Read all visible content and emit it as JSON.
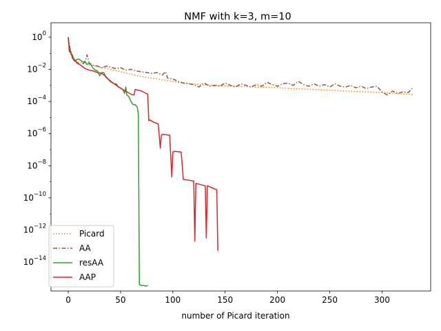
{
  "chart_data": {
    "type": "line",
    "title": "NMF with k=3, m=10",
    "xlabel": "number of Picard iteration",
    "ylabel": "",
    "yscale": "log",
    "xlim": [
      -16.5,
      346.5
    ],
    "ylim_exp": [
      -15.8,
      0.9
    ],
    "xticks": [
      0,
      50,
      100,
      150,
      200,
      250,
      300
    ],
    "xtick_labels": [
      "0",
      "50",
      "100",
      "150",
      "200",
      "250",
      "300"
    ],
    "yticks_exp": [
      0,
      -2,
      -4,
      -6,
      -8,
      -10,
      -12,
      -14
    ],
    "ytick_labels": [
      {
        "base": "10",
        "exp": "0"
      },
      {
        "base": "10",
        "exp": "−2"
      },
      {
        "base": "10",
        "exp": "−4"
      },
      {
        "base": "10",
        "exp": "−6"
      },
      {
        "base": "10",
        "exp": "−8"
      },
      {
        "base": "10",
        "exp": "−10"
      },
      {
        "base": "10",
        "exp": "−12"
      },
      {
        "base": "10",
        "exp": "−14"
      }
    ],
    "grid": false,
    "legend": {
      "position": "lower-left"
    },
    "series": [
      {
        "name": "Picard",
        "color": "#ff7f0e",
        "dash": "dotted",
        "points_log10": [
          [
            0,
            0
          ],
          [
            2,
            -0.9
          ],
          [
            5,
            -1.3
          ],
          [
            10,
            -1.55
          ],
          [
            20,
            -1.72
          ],
          [
            35,
            -1.92
          ],
          [
            50,
            -2.15
          ],
          [
            70,
            -2.45
          ],
          [
            90,
            -2.65
          ],
          [
            110,
            -2.85
          ],
          [
            130,
            -2.97
          ],
          [
            160,
            -3.05
          ],
          [
            200,
            -3.15
          ],
          [
            250,
            -3.3
          ],
          [
            300,
            -3.45
          ],
          [
            330,
            -3.57
          ]
        ]
      },
      {
        "name": "AA",
        "color": "#8c564b",
        "dash": "dashdot",
        "points_log10": [
          [
            0,
            0
          ],
          [
            2,
            -0.8
          ],
          [
            5,
            -1.3
          ],
          [
            8,
            -1.6
          ],
          [
            12,
            -1.75
          ],
          [
            16,
            -1.55
          ],
          [
            18,
            -1.1
          ],
          [
            20,
            -1.6
          ],
          [
            24,
            -1.75
          ],
          [
            28,
            -1.8
          ],
          [
            32,
            -1.9
          ],
          [
            36,
            -1.8
          ],
          [
            40,
            -1.85
          ],
          [
            45,
            -1.95
          ],
          [
            50,
            -1.9
          ],
          [
            55,
            -2.05
          ],
          [
            60,
            -2.0
          ],
          [
            65,
            -2.1
          ],
          [
            70,
            -2.15
          ],
          [
            75,
            -2.2
          ],
          [
            80,
            -2.25
          ],
          [
            85,
            -2.2
          ],
          [
            90,
            -2.35
          ],
          [
            93,
            -2.15
          ],
          [
            95,
            -2.55
          ],
          [
            100,
            -2.6
          ],
          [
            105,
            -2.75
          ],
          [
            110,
            -2.85
          ],
          [
            115,
            -2.9
          ],
          [
            120,
            -2.95
          ],
          [
            125,
            -3.1
          ],
          [
            130,
            -2.85
          ],
          [
            135,
            -3.05
          ],
          [
            140,
            -3.0
          ],
          [
            145,
            -3.05
          ],
          [
            150,
            -2.85
          ],
          [
            155,
            -3.0
          ],
          [
            160,
            -3.1
          ],
          [
            165,
            -2.9
          ],
          [
            170,
            -3.0
          ],
          [
            175,
            -3.1
          ],
          [
            180,
            -2.95
          ],
          [
            185,
            -3.05
          ],
          [
            190,
            -2.8
          ],
          [
            195,
            -2.95
          ],
          [
            200,
            -3.05
          ],
          [
            205,
            -2.9
          ],
          [
            210,
            -2.85
          ],
          [
            215,
            -3.0
          ],
          [
            220,
            -2.75
          ],
          [
            225,
            -2.95
          ],
          [
            230,
            -3.05
          ],
          [
            235,
            -2.9
          ],
          [
            240,
            -3.05
          ],
          [
            245,
            -2.95
          ],
          [
            250,
            -3.1
          ],
          [
            255,
            -2.9
          ],
          [
            260,
            -3.05
          ],
          [
            265,
            -3.1
          ],
          [
            270,
            -3.0
          ],
          [
            275,
            -3.15
          ],
          [
            280,
            -3.05
          ],
          [
            285,
            -3.2
          ],
          [
            290,
            -3.1
          ],
          [
            295,
            -3.05
          ],
          [
            300,
            -3.4
          ],
          [
            305,
            -3.6
          ],
          [
            310,
            -3.35
          ],
          [
            315,
            -3.5
          ],
          [
            320,
            -3.4
          ],
          [
            325,
            -3.45
          ],
          [
            330,
            -3.1
          ]
        ]
      },
      {
        "name": "resAA",
        "color": "#2ca02c",
        "dash": "solid",
        "points_log10": [
          [
            0,
            0
          ],
          [
            1,
            -0.9
          ],
          [
            2,
            -0.8
          ],
          [
            4,
            -1.3
          ],
          [
            6,
            -1.5
          ],
          [
            8,
            -1.4
          ],
          [
            10,
            -1.35
          ],
          [
            12,
            -1.45
          ],
          [
            14,
            -1.55
          ],
          [
            16,
            -1.5
          ],
          [
            18,
            -1.7
          ],
          [
            20,
            -1.6
          ],
          [
            22,
            -1.75
          ],
          [
            24,
            -1.95
          ],
          [
            26,
            -2.05
          ],
          [
            28,
            -2.1
          ],
          [
            30,
            -2.4
          ],
          [
            32,
            -2.2
          ],
          [
            34,
            -2.2
          ],
          [
            36,
            -2.5
          ],
          [
            38,
            -2.6
          ],
          [
            40,
            -2.7
          ],
          [
            42,
            -2.8
          ],
          [
            44,
            -2.9
          ],
          [
            46,
            -2.9
          ],
          [
            48,
            -3.1
          ],
          [
            50,
            -3.15
          ],
          [
            52,
            -3.25
          ],
          [
            54,
            -3.5
          ],
          [
            55,
            -3.1
          ],
          [
            56,
            -3.6
          ],
          [
            58,
            -3.7
          ],
          [
            60,
            -4.0
          ],
          [
            62,
            -4.2
          ],
          [
            64,
            -4.2
          ],
          [
            66,
            -4.35
          ],
          [
            67,
            -4.8
          ],
          [
            68,
            -15.4
          ],
          [
            70,
            -15.45
          ],
          [
            72,
            -15.45
          ],
          [
            74,
            -15.5
          ],
          [
            76,
            -15.45
          ]
        ]
      },
      {
        "name": "AAP",
        "color": "#d62728",
        "dash": "solid",
        "points_log10": [
          [
            0,
            0
          ],
          [
            1,
            -0.8
          ],
          [
            3,
            -1.1
          ],
          [
            5,
            -1.35
          ],
          [
            8,
            -1.55
          ],
          [
            12,
            -1.75
          ],
          [
            16,
            -1.95
          ],
          [
            20,
            -2.05
          ],
          [
            24,
            -2.1
          ],
          [
            28,
            -2.2
          ],
          [
            32,
            -2.25
          ],
          [
            36,
            -2.45
          ],
          [
            40,
            -2.75
          ],
          [
            44,
            -2.9
          ],
          [
            48,
            -3.1
          ],
          [
            52,
            -3.25
          ],
          [
            56,
            -3.4
          ],
          [
            60,
            -3.55
          ],
          [
            63,
            -3.6
          ],
          [
            64,
            -3.25
          ],
          [
            70,
            -3.35
          ],
          [
            76,
            -3.55
          ],
          [
            77,
            -5.2
          ],
          [
            78,
            -5.15
          ],
          [
            82,
            -5.3
          ],
          [
            86,
            -5.4
          ],
          [
            88,
            -6.9
          ],
          [
            89,
            -6.1
          ],
          [
            90,
            -6.05
          ],
          [
            97,
            -6.1
          ],
          [
            98,
            -7.4
          ],
          [
            99,
            -8.7
          ],
          [
            100,
            -7.15
          ],
          [
            102,
            -7.1
          ],
          [
            108,
            -7.15
          ],
          [
            110,
            -8.85
          ],
          [
            120,
            -8.95
          ],
          [
            121,
            -12.7
          ],
          [
            122,
            -9.1
          ],
          [
            131,
            -9.25
          ],
          [
            132,
            -12.5
          ],
          [
            133,
            -9.25
          ],
          [
            142,
            -9.5
          ],
          [
            143,
            -13.3
          ]
        ]
      }
    ]
  }
}
